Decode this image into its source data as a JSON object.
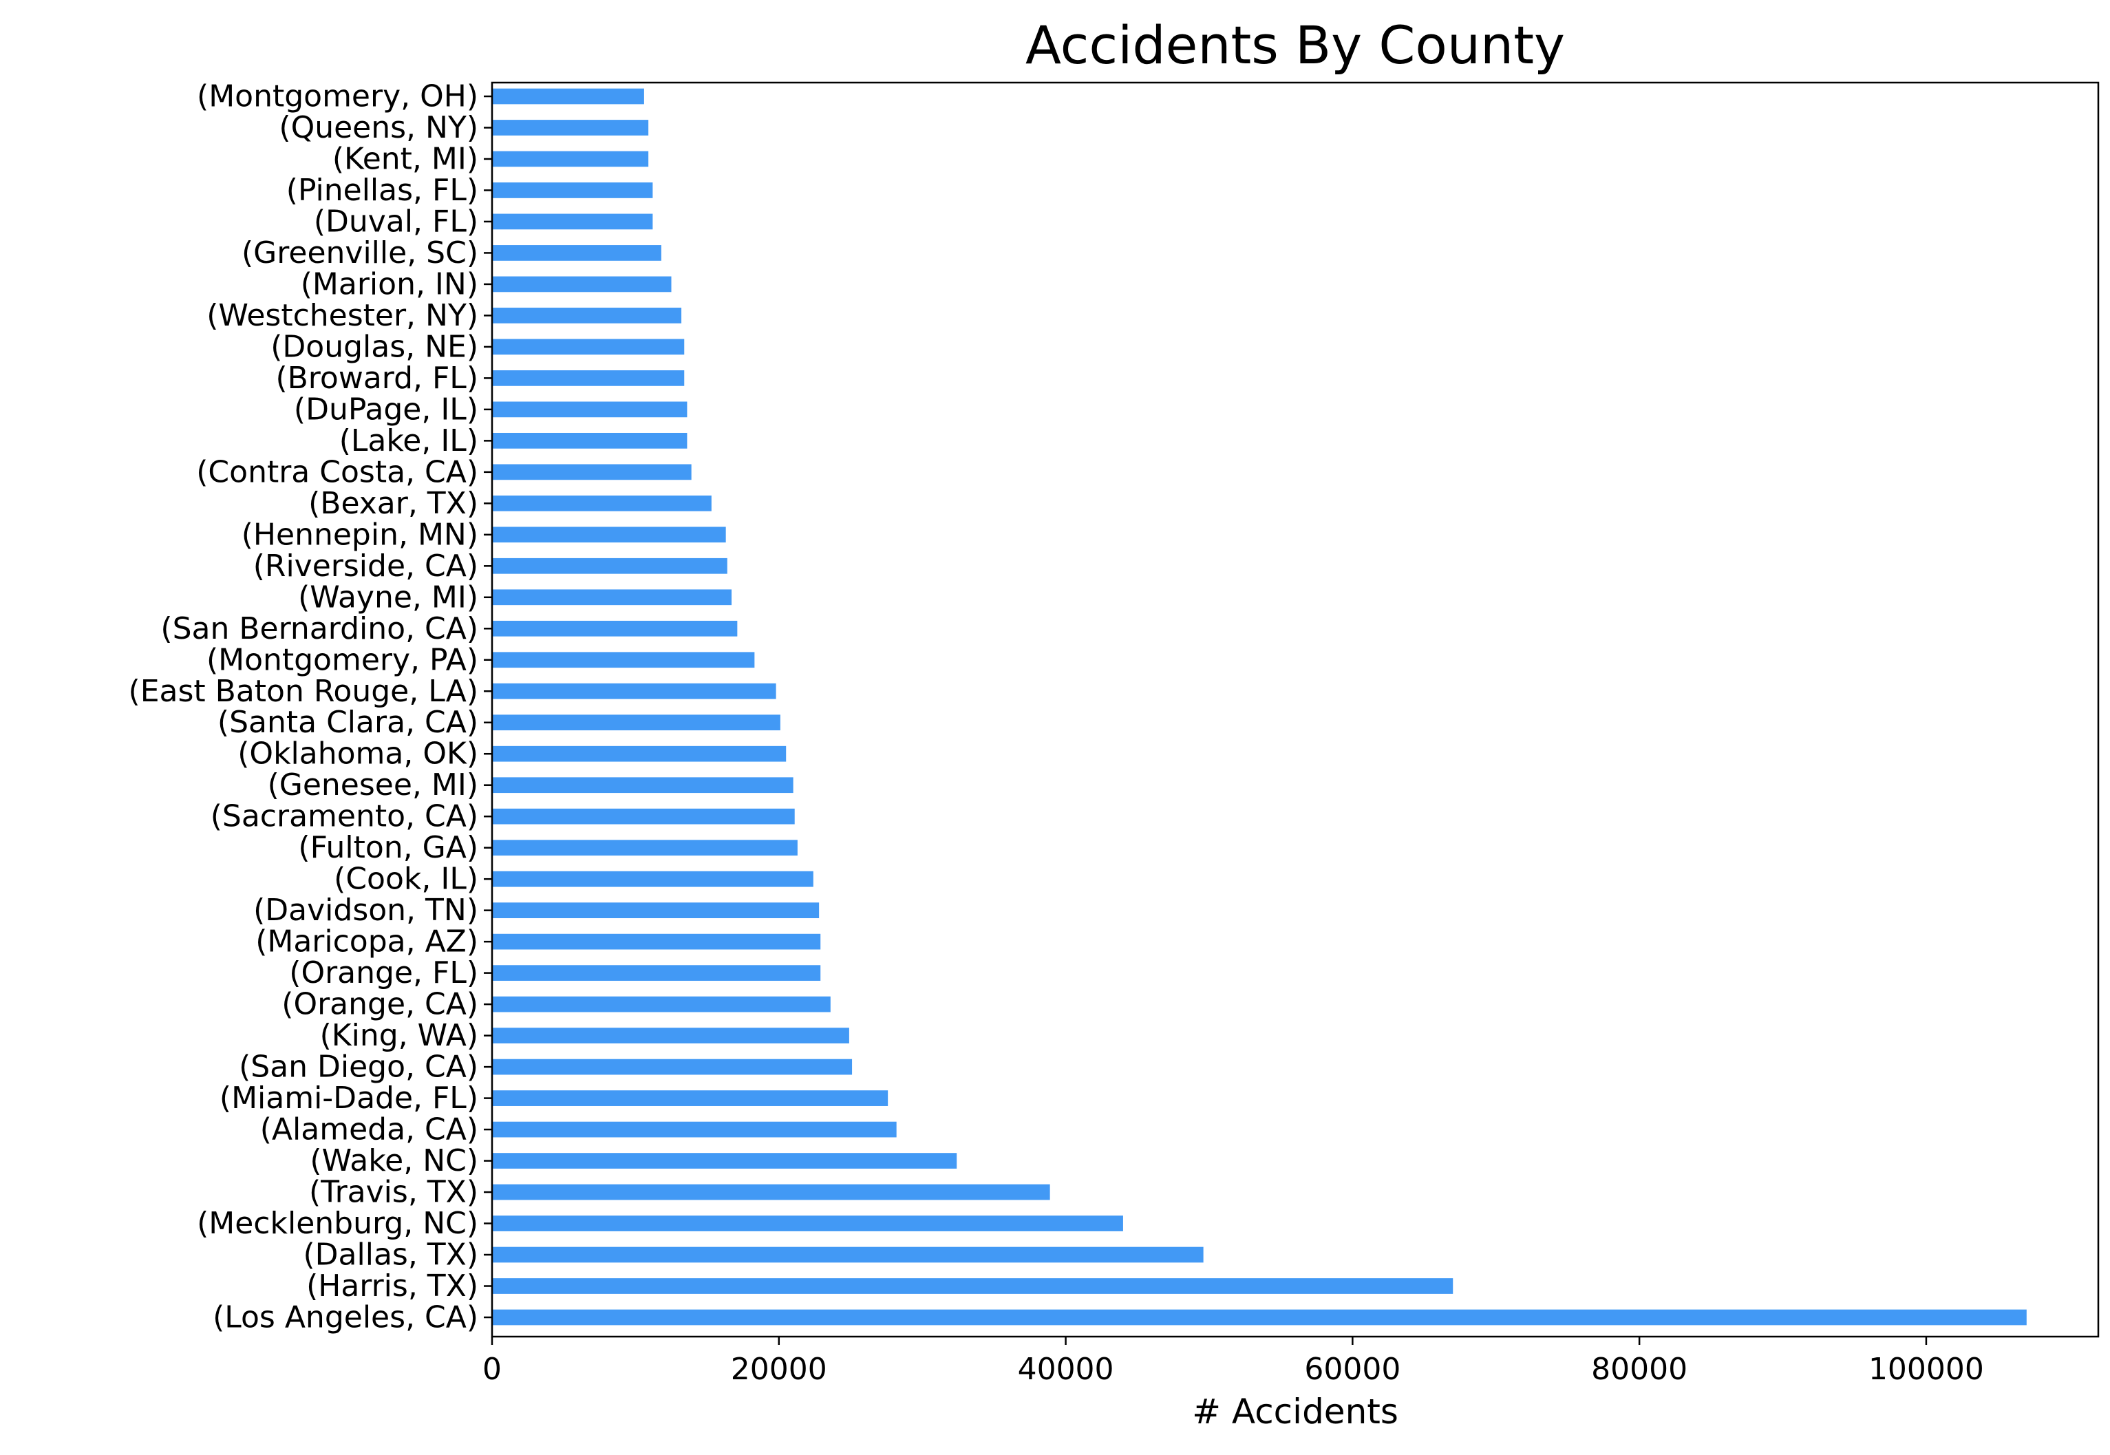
{
  "chart_data": {
    "type": "bar",
    "orientation": "horizontal",
    "title": "Accidents By County",
    "xlabel": "# Accidents",
    "ylabel": "",
    "xlim": [
      0,
      112000
    ],
    "xticks": [
      0,
      20000,
      40000,
      60000,
      80000,
      100000
    ],
    "bar_color": "#4299f5",
    "grid": false,
    "legend": "none",
    "categories": [
      "(Los Angeles, CA)",
      "(Harris, TX)",
      "(Dallas, TX)",
      "(Mecklenburg, NC)",
      "(Travis, TX)",
      "(Wake, NC)",
      "(Alameda, CA)",
      "(Miami-Dade, FL)",
      "(San Diego, CA)",
      "(King, WA)",
      "(Orange, CA)",
      "(Orange, FL)",
      "(Maricopa, AZ)",
      "(Davidson, TN)",
      "(Cook, IL)",
      "(Fulton, GA)",
      "(Sacramento, CA)",
      "(Genesee, MI)",
      "(Oklahoma, OK)",
      "(Santa Clara, CA)",
      "(East Baton Rouge, LA)",
      "(Montgomery, PA)",
      "(San Bernardino, CA)",
      "(Wayne, MI)",
      "(Riverside, CA)",
      "(Hennepin, MN)",
      "(Bexar, TX)",
      "(Contra Costa, CA)",
      "(Lake, IL)",
      "(DuPage, IL)",
      "(Broward, FL)",
      "(Douglas, NE)",
      "(Westchester, NY)",
      "(Marion, IN)",
      "(Greenville, SC)",
      "(Duval, FL)",
      "(Pinellas, FL)",
      "(Kent, MI)",
      "(Queens, NY)",
      "(Montgomery, OH)"
    ],
    "values": [
      107000,
      67000,
      49600,
      44000,
      38900,
      32400,
      28200,
      27600,
      25100,
      24900,
      23600,
      22900,
      22900,
      22800,
      22400,
      21300,
      21100,
      21000,
      20500,
      20100,
      19800,
      18300,
      17100,
      16700,
      16400,
      16300,
      15300,
      13900,
      13600,
      13600,
      13400,
      13400,
      13200,
      12500,
      11800,
      11200,
      11200,
      10900,
      10900,
      10600
    ]
  }
}
